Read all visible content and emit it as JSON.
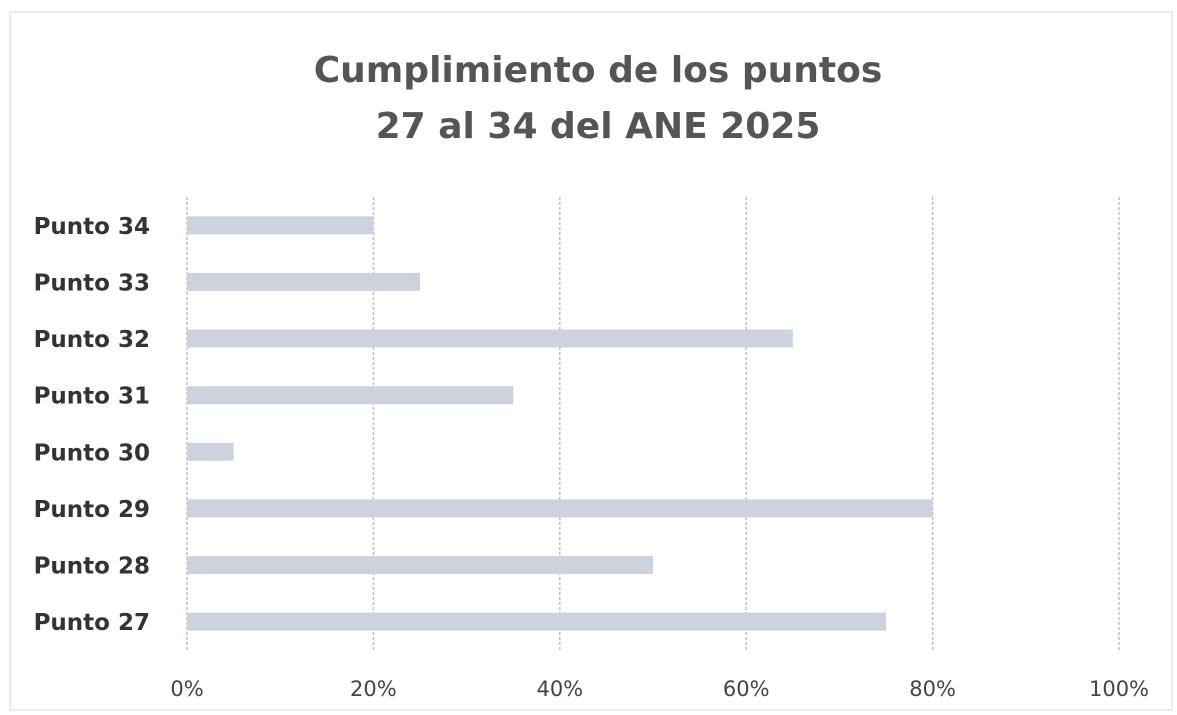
{
  "chart_data": {
    "type": "bar",
    "orientation": "horizontal",
    "title": [
      "Cumplimiento de los puntos",
      "27 al 34 del ANE 2025"
    ],
    "categories": [
      "Punto 27",
      "Punto 28",
      "Punto 29",
      "Punto 30",
      "Punto 31",
      "Punto 32",
      "Punto 33",
      "Punto 34"
    ],
    "values": [
      75,
      50,
      80,
      5,
      35,
      65,
      25,
      20
    ],
    "color": "#cdd3de",
    "xlim": [
      0,
      100
    ],
    "xticks": [
      {
        "value": 0,
        "label": "0%"
      },
      {
        "value": 20,
        "label": "20%"
      },
      {
        "value": 40,
        "label": "40%"
      },
      {
        "value": 60,
        "label": "60%"
      },
      {
        "value": 80,
        "label": "80%"
      },
      {
        "value": 100,
        "label": "100%"
      }
    ],
    "grid": true
  }
}
